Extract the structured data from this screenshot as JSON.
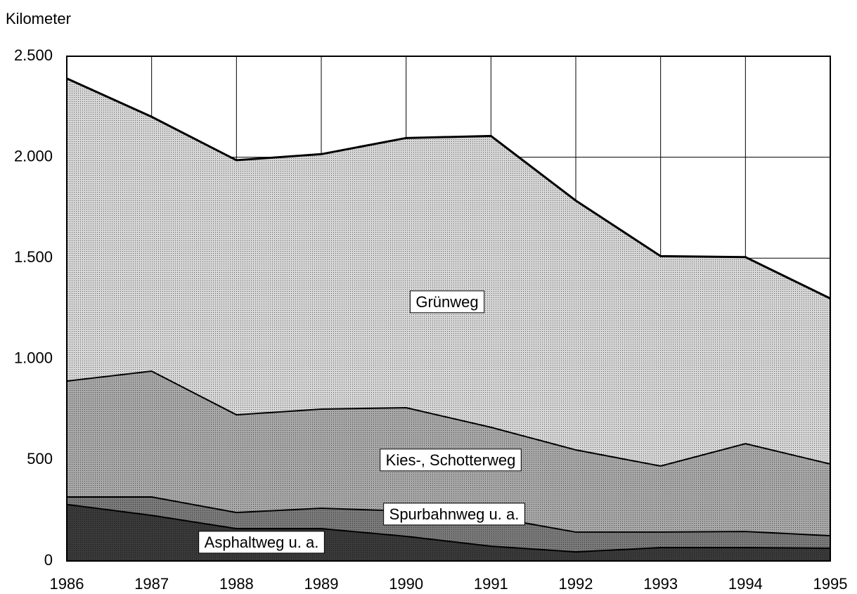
{
  "chart_data": {
    "type": "stacked_area",
    "y_axis_label": "Kilometer",
    "categories": [
      "1986",
      "1987",
      "1988",
      "1989",
      "1990",
      "1991",
      "1992",
      "1993",
      "1994",
      "1995"
    ],
    "series": [
      {
        "name": "Asphaltweg u. a.",
        "color": "#3a3a3a",
        "values": [
          280,
          226,
          160,
          160,
          122,
          73,
          45,
          66,
          66,
          63
        ]
      },
      {
        "name": "Spurbahnweg u. a.",
        "color": "#7a7a7a",
        "values": [
          37,
          91,
          80,
          101,
          125,
          145,
          98,
          77,
          80,
          62
        ]
      },
      {
        "name": "Kies-, Schotterweg",
        "color": "#a8a8a8",
        "values": [
          574,
          623,
          484,
          491,
          512,
          444,
          407,
          327,
          435,
          355
        ]
      },
      {
        "name": "Grünweg",
        "color": "#d6d6d6",
        "values": [
          1499,
          1260,
          1261,
          1263,
          1336,
          1443,
          1235,
          1040,
          924,
          820
        ]
      }
    ],
    "ylim": [
      0,
      2500
    ],
    "yticks": [
      0,
      500,
      {
        "value": 1000,
        "label": "1.000"
      },
      {
        "value": 1500,
        "label": "1.500"
      },
      {
        "value": 2000,
        "label": "2.000"
      },
      {
        "value": 2500,
        "label": "2.500"
      }
    ],
    "grid": true
  }
}
